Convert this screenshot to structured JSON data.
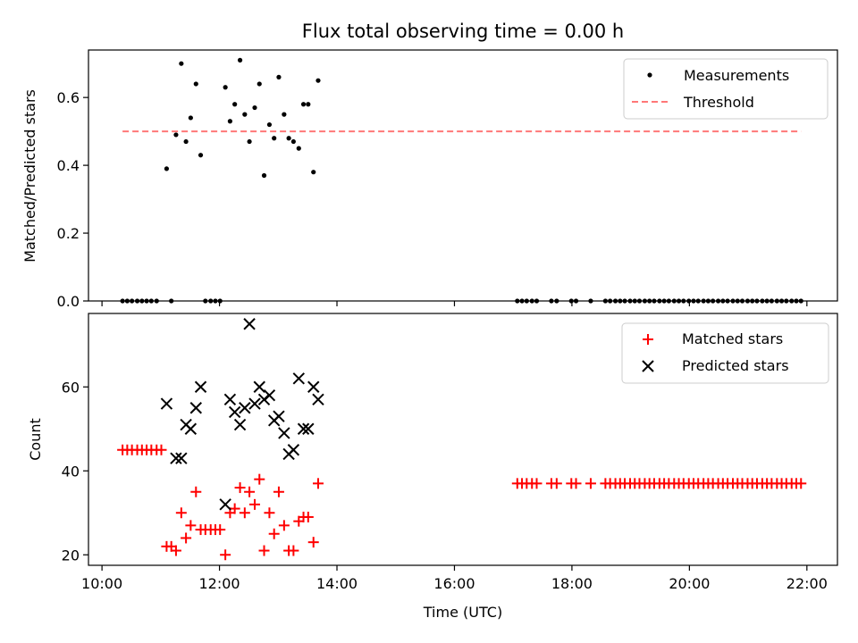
{
  "chart_data": [
    {
      "type": "scatter",
      "title": "Flux total observing time = 0.00 h",
      "xlabel": "",
      "ylabel": "Matched/Predicted stars",
      "xlim": [
        9.77,
        22.52
      ],
      "ylim": [
        0.0,
        0.74
      ],
      "yticks": [
        0.0,
        0.2,
        0.4,
        0.6
      ],
      "ytick_labels": [
        "0.0",
        "0.2",
        "0.4",
        "0.6"
      ],
      "xticks": [
        10,
        12,
        14,
        16,
        18,
        20,
        22
      ],
      "grid": false,
      "legend_placement": "top-right",
      "series": [
        {
          "name": "Measurements",
          "kind": "points",
          "color": "#000000",
          "points": [
            [
              10.35,
              0
            ],
            [
              10.43,
              0
            ],
            [
              10.51,
              0
            ],
            [
              10.6,
              0
            ],
            [
              10.68,
              0
            ],
            [
              10.76,
              0
            ],
            [
              10.84,
              0
            ],
            [
              10.93,
              0
            ],
            [
              11.18,
              0
            ],
            [
              11.76,
              0
            ],
            [
              11.85,
              0
            ],
            [
              11.93,
              0
            ],
            [
              12.01,
              0
            ],
            [
              11.1,
              0.39
            ],
            [
              11.26,
              0.49
            ],
            [
              11.35,
              0.7
            ],
            [
              11.43,
              0.47
            ],
            [
              11.51,
              0.54
            ],
            [
              11.6,
              0.64
            ],
            [
              11.68,
              0.43
            ],
            [
              12.1,
              0.63
            ],
            [
              12.18,
              0.53
            ],
            [
              12.26,
              0.58
            ],
            [
              12.35,
              0.71
            ],
            [
              12.43,
              0.55
            ],
            [
              12.51,
              0.47
            ],
            [
              12.6,
              0.57
            ],
            [
              12.68,
              0.64
            ],
            [
              12.76,
              0.37
            ],
            [
              12.85,
              0.52
            ],
            [
              12.93,
              0.48
            ],
            [
              13.01,
              0.66
            ],
            [
              13.1,
              0.55
            ],
            [
              13.18,
              0.48
            ],
            [
              13.26,
              0.47
            ],
            [
              13.35,
              0.45
            ],
            [
              13.43,
              0.58
            ],
            [
              13.51,
              0.58
            ],
            [
              13.6,
              0.38
            ],
            [
              13.68,
              0.65
            ],
            [
              17.07,
              0
            ],
            [
              17.15,
              0
            ],
            [
              17.23,
              0
            ],
            [
              17.32,
              0
            ],
            [
              17.4,
              0
            ],
            [
              17.65,
              0
            ],
            [
              17.74,
              0
            ],
            [
              17.99,
              0
            ],
            [
              18.07,
              0
            ],
            [
              18.32,
              0
            ],
            [
              18.57,
              0
            ],
            [
              18.65,
              0
            ],
            [
              18.74,
              0
            ],
            [
              18.82,
              0
            ],
            [
              18.9,
              0
            ],
            [
              18.99,
              0
            ],
            [
              19.07,
              0
            ],
            [
              19.15,
              0
            ],
            [
              19.24,
              0
            ],
            [
              19.32,
              0
            ],
            [
              19.4,
              0
            ],
            [
              19.49,
              0
            ],
            [
              19.57,
              0
            ],
            [
              19.65,
              0
            ],
            [
              19.74,
              0
            ],
            [
              19.82,
              0
            ],
            [
              19.9,
              0
            ],
            [
              19.99,
              0
            ],
            [
              20.07,
              0
            ],
            [
              20.15,
              0
            ],
            [
              20.24,
              0
            ],
            [
              20.32,
              0
            ],
            [
              20.4,
              0
            ],
            [
              20.49,
              0
            ],
            [
              20.57,
              0
            ],
            [
              20.65,
              0
            ],
            [
              20.74,
              0
            ],
            [
              20.82,
              0
            ],
            [
              20.9,
              0
            ],
            [
              20.99,
              0
            ],
            [
              21.07,
              0
            ],
            [
              21.15,
              0
            ],
            [
              21.24,
              0
            ],
            [
              21.32,
              0
            ],
            [
              21.4,
              0
            ],
            [
              21.49,
              0
            ],
            [
              21.57,
              0
            ],
            [
              21.65,
              0
            ],
            [
              21.74,
              0
            ],
            [
              21.82,
              0
            ],
            [
              21.9,
              0
            ]
          ]
        },
        {
          "name": "Threshold",
          "kind": "dashed-line",
          "color": "#ff7777",
          "points": [
            [
              10.35,
              0.5
            ],
            [
              21.9,
              0.5
            ]
          ]
        }
      ]
    },
    {
      "type": "scatter",
      "title": "",
      "xlabel": "Time (UTC)",
      "ylabel": "Count",
      "xlim": [
        9.77,
        22.52
      ],
      "ylim": [
        17.5,
        77.5
      ],
      "yticks": [
        20,
        40,
        60
      ],
      "ytick_labels": [
        "20",
        "40",
        "60"
      ],
      "xticks": [
        10,
        12,
        14,
        16,
        18,
        20,
        22
      ],
      "xtick_labels": [
        "10:00",
        "12:00",
        "14:00",
        "16:00",
        "18:00",
        "20:00",
        "22:00"
      ],
      "grid": false,
      "legend_placement": "top-right",
      "series": [
        {
          "name": "Matched stars",
          "kind": "plus",
          "color": "#ff0000",
          "points": [
            [
              10.35,
              45
            ],
            [
              10.43,
              45
            ],
            [
              10.51,
              45
            ],
            [
              10.6,
              45
            ],
            [
              10.68,
              45
            ],
            [
              10.76,
              45
            ],
            [
              10.84,
              45
            ],
            [
              10.93,
              45
            ],
            [
              11.01,
              45
            ],
            [
              11.1,
              22
            ],
            [
              11.18,
              22
            ],
            [
              11.26,
              21
            ],
            [
              11.35,
              30
            ],
            [
              11.43,
              24
            ],
            [
              11.51,
              27
            ],
            [
              11.6,
              35
            ],
            [
              11.68,
              26
            ],
            [
              11.76,
              26
            ],
            [
              11.85,
              26
            ],
            [
              11.93,
              26
            ],
            [
              12.01,
              26
            ],
            [
              12.1,
              20
            ],
            [
              12.18,
              30
            ],
            [
              12.26,
              31
            ],
            [
              12.35,
              36
            ],
            [
              12.43,
              30
            ],
            [
              12.51,
              35
            ],
            [
              12.6,
              32
            ],
            [
              12.68,
              38
            ],
            [
              12.76,
              21
            ],
            [
              12.85,
              30
            ],
            [
              12.93,
              25
            ],
            [
              13.01,
              35
            ],
            [
              13.1,
              27
            ],
            [
              13.18,
              21
            ],
            [
              13.26,
              21
            ],
            [
              13.35,
              28
            ],
            [
              13.43,
              29
            ],
            [
              13.51,
              29
            ],
            [
              13.6,
              23
            ],
            [
              13.68,
              37
            ],
            [
              17.07,
              37
            ],
            [
              17.15,
              37
            ],
            [
              17.23,
              37
            ],
            [
              17.32,
              37
            ],
            [
              17.4,
              37
            ],
            [
              17.65,
              37
            ],
            [
              17.74,
              37
            ],
            [
              17.99,
              37
            ],
            [
              18.07,
              37
            ],
            [
              18.32,
              37
            ],
            [
              18.57,
              37
            ],
            [
              18.65,
              37
            ],
            [
              18.74,
              37
            ],
            [
              18.82,
              37
            ],
            [
              18.9,
              37
            ],
            [
              18.99,
              37
            ],
            [
              19.07,
              37
            ],
            [
              19.15,
              37
            ],
            [
              19.24,
              37
            ],
            [
              19.32,
              37
            ],
            [
              19.4,
              37
            ],
            [
              19.49,
              37
            ],
            [
              19.57,
              37
            ],
            [
              19.65,
              37
            ],
            [
              19.74,
              37
            ],
            [
              19.82,
              37
            ],
            [
              19.9,
              37
            ],
            [
              19.99,
              37
            ],
            [
              20.07,
              37
            ],
            [
              20.15,
              37
            ],
            [
              20.24,
              37
            ],
            [
              20.32,
              37
            ],
            [
              20.4,
              37
            ],
            [
              20.49,
              37
            ],
            [
              20.57,
              37
            ],
            [
              20.65,
              37
            ],
            [
              20.74,
              37
            ],
            [
              20.82,
              37
            ],
            [
              20.9,
              37
            ],
            [
              20.99,
              37
            ],
            [
              21.07,
              37
            ],
            [
              21.15,
              37
            ],
            [
              21.24,
              37
            ],
            [
              21.32,
              37
            ],
            [
              21.4,
              37
            ],
            [
              21.49,
              37
            ],
            [
              21.57,
              37
            ],
            [
              21.65,
              37
            ],
            [
              21.74,
              37
            ],
            [
              21.82,
              37
            ],
            [
              21.9,
              37
            ]
          ]
        },
        {
          "name": "Predicted stars",
          "kind": "cross",
          "color": "#000000",
          "points": [
            [
              11.1,
              56
            ],
            [
              11.26,
              43
            ],
            [
              11.35,
              43
            ],
            [
              11.43,
              51
            ],
            [
              11.51,
              50
            ],
            [
              11.6,
              55
            ],
            [
              11.68,
              60
            ],
            [
              12.1,
              32
            ],
            [
              12.18,
              57
            ],
            [
              12.26,
              54
            ],
            [
              12.35,
              51
            ],
            [
              12.43,
              55
            ],
            [
              12.51,
              75
            ],
            [
              12.6,
              56
            ],
            [
              12.68,
              60
            ],
            [
              12.76,
              57
            ],
            [
              12.85,
              58
            ],
            [
              12.93,
              52
            ],
            [
              13.01,
              53
            ],
            [
              13.1,
              49
            ],
            [
              13.18,
              44
            ],
            [
              13.26,
              45
            ],
            [
              13.35,
              62
            ],
            [
              13.43,
              50
            ],
            [
              13.51,
              50
            ],
            [
              13.6,
              60
            ],
            [
              13.68,
              57
            ]
          ]
        }
      ]
    }
  ]
}
